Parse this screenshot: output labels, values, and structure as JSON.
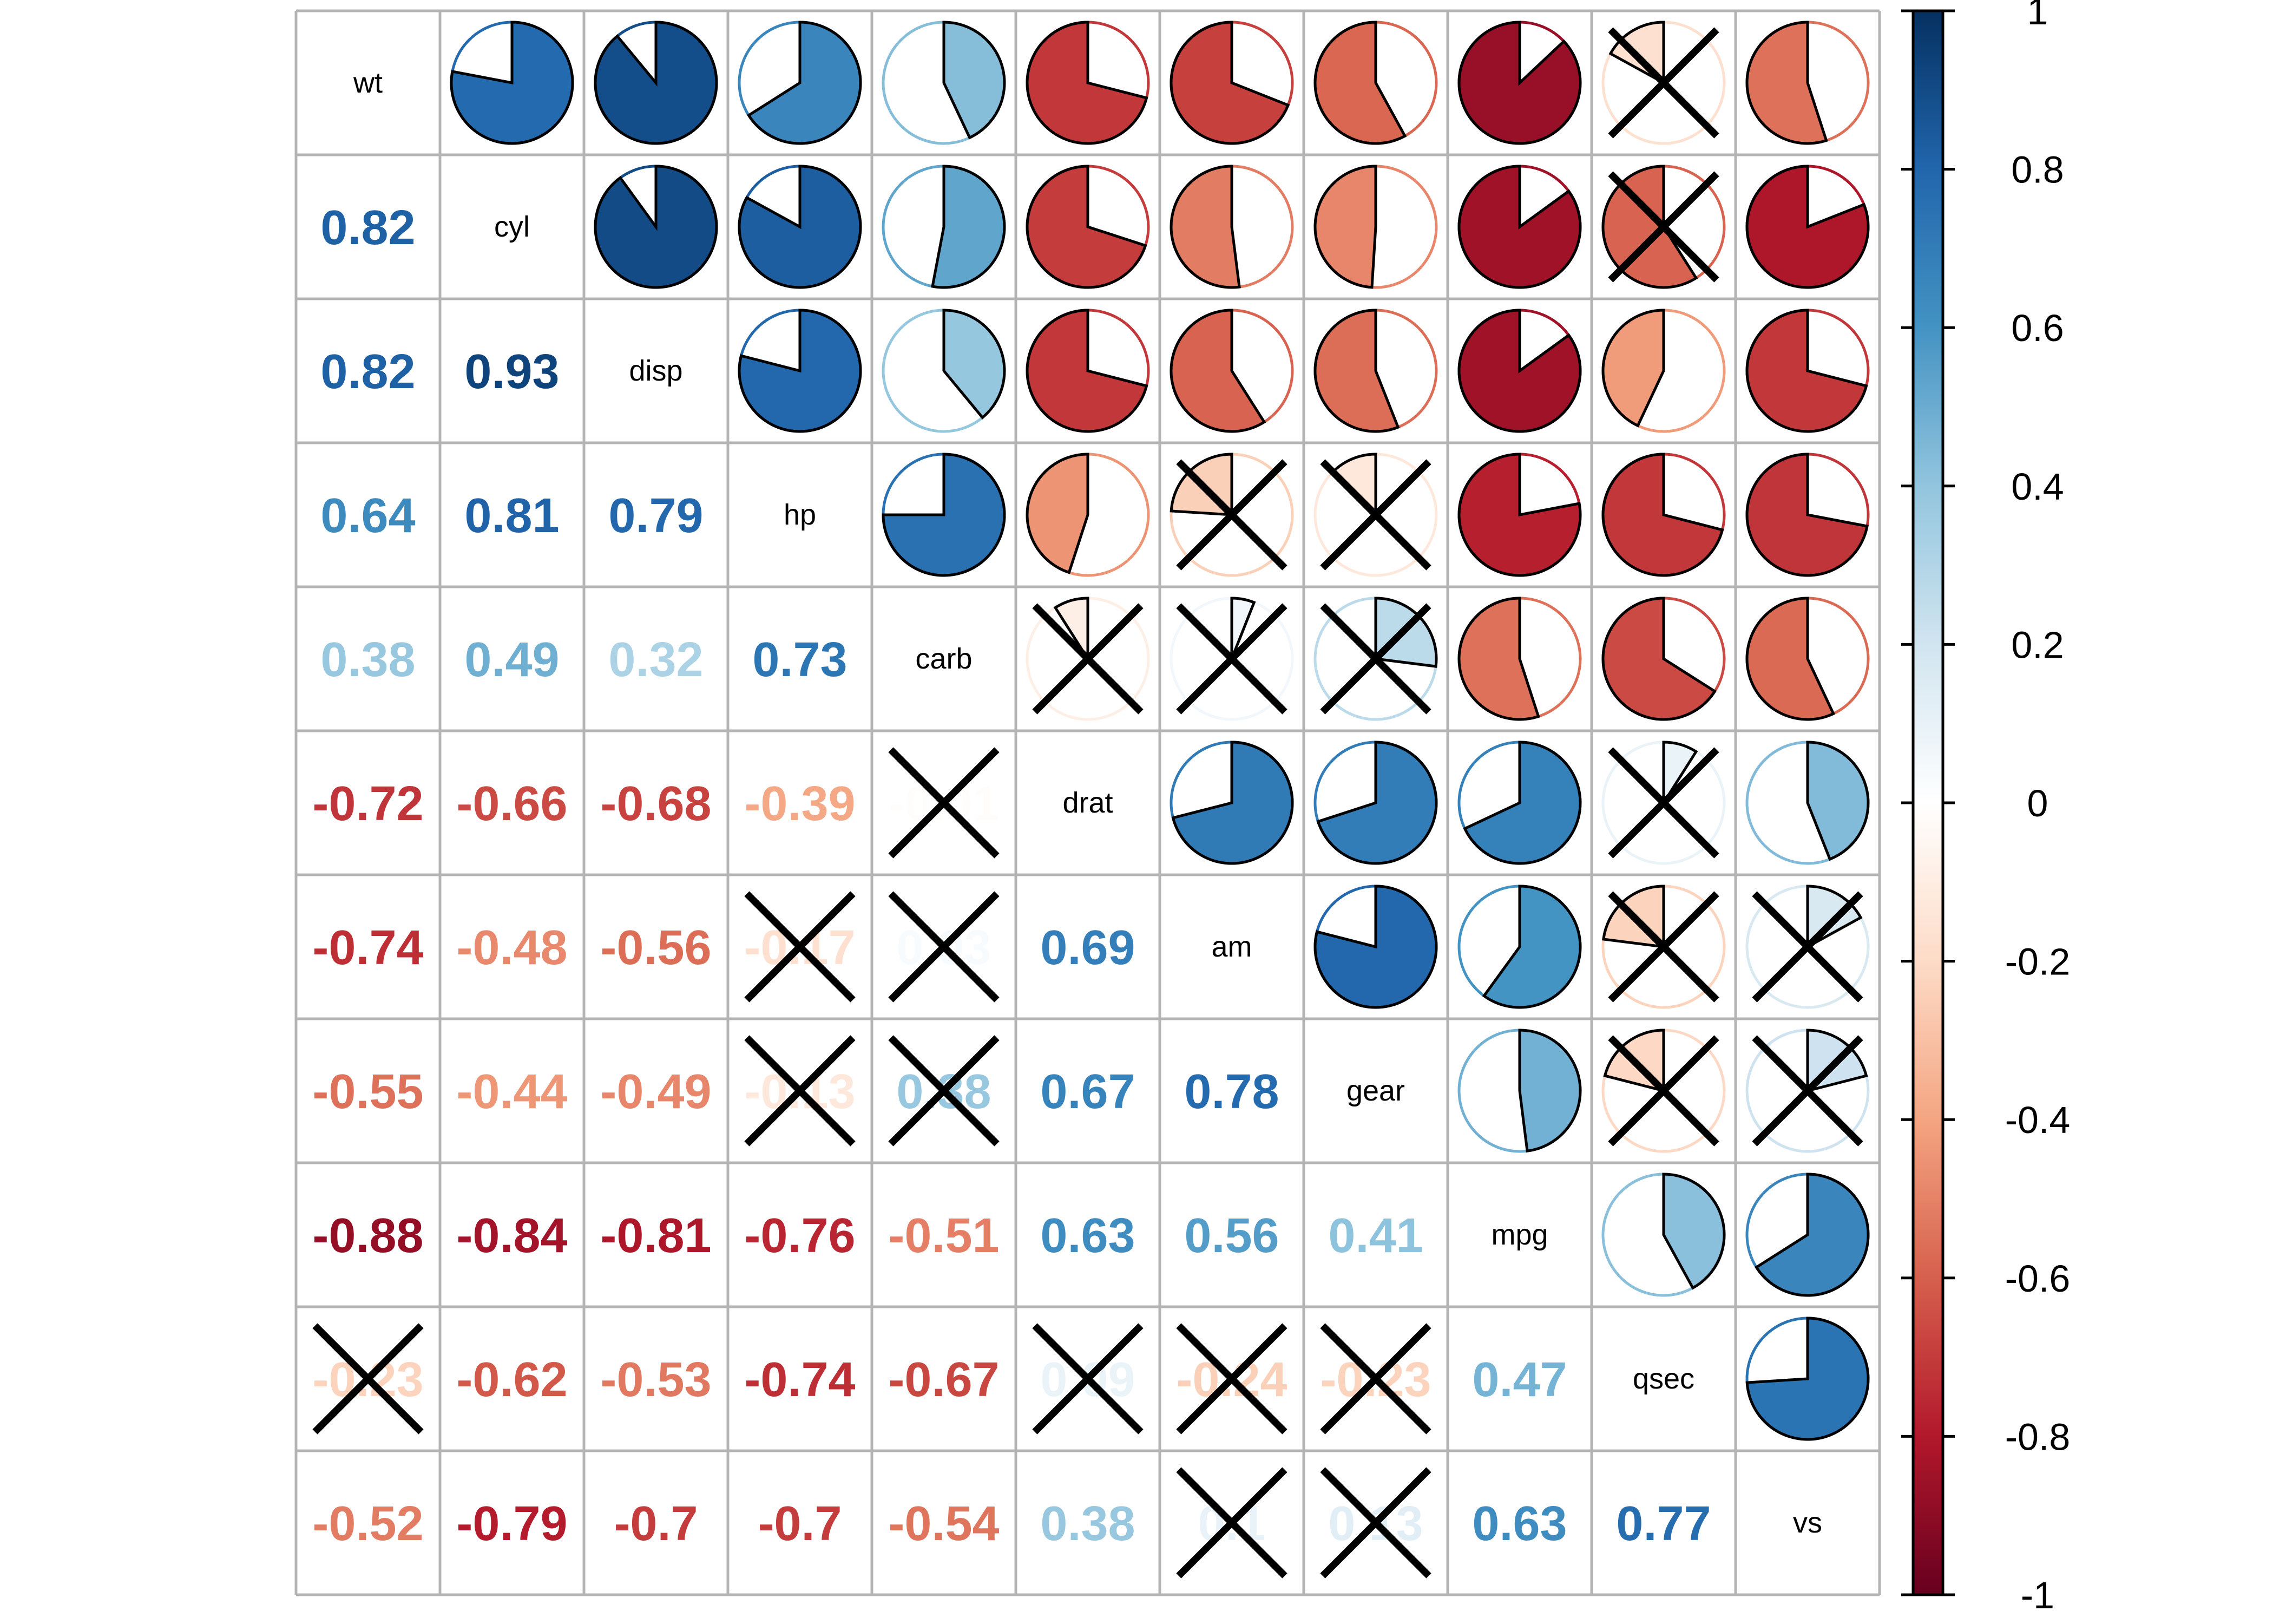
{
  "chart_data": {
    "type": "heatmap",
    "layout": "correlation matrix; variable names on diagonal, pie glyphs in upper triangle, numeric coefficients in lower triangle; crosses mark non-significant cells",
    "variables": [
      "wt",
      "cyl",
      "disp",
      "hp",
      "carb",
      "drat",
      "am",
      "gear",
      "mpg",
      "qsec",
      "vs"
    ],
    "matrix": [
      [
        1,
        0.78,
        0.89,
        0.66,
        0.43,
        -0.71,
        -0.69,
        -0.58,
        -0.87,
        -0.17,
        -0.55
      ],
      [
        0.82,
        1,
        0.9,
        0.83,
        0.53,
        -0.7,
        -0.52,
        -0.49,
        -0.85,
        -0.59,
        -0.81
      ],
      [
        0.82,
        0.93,
        1,
        0.79,
        0.39,
        -0.71,
        -0.59,
        -0.56,
        -0.85,
        -0.43,
        -0.71
      ],
      [
        0.64,
        0.81,
        0.79,
        1,
        0.75,
        -0.45,
        -0.24,
        -0.13,
        -0.78,
        -0.71,
        -0.72
      ],
      [
        0.38,
        0.49,
        0.32,
        0.73,
        1,
        -0.09,
        0.06,
        0.27,
        -0.55,
        -0.66,
        -0.57
      ],
      [
        -0.72,
        -0.66,
        -0.68,
        -0.39,
        -0.01,
        1,
        0.71,
        0.7,
        0.68,
        0.09,
        0.44
      ],
      [
        -0.74,
        -0.48,
        -0.56,
        -0.17,
        0.03,
        0.69,
        1,
        0.79,
        0.6,
        -0.23,
        0.17
      ],
      [
        -0.55,
        -0.44,
        -0.49,
        -0.13,
        0.38,
        0.67,
        0.78,
        1,
        0.48,
        -0.21,
        0.21
      ],
      [
        -0.88,
        -0.84,
        -0.81,
        -0.76,
        -0.51,
        0.63,
        0.56,
        0.41,
        1,
        0.42,
        0.66
      ],
      [
        -0.23,
        -0.62,
        -0.53,
        -0.74,
        -0.67,
        0.09,
        -0.24,
        -0.23,
        0.47,
        1,
        0.74
      ],
      [
        -0.52,
        -0.79,
        -0.7,
        -0.7,
        -0.54,
        0.38,
        0.1,
        0.13,
        0.63,
        0.77,
        1
      ]
    ],
    "insignificant": [
      [
        0,
        9
      ],
      [
        1,
        9
      ],
      [
        3,
        6
      ],
      [
        3,
        7
      ],
      [
        4,
        5
      ],
      [
        4,
        6
      ],
      [
        4,
        7
      ],
      [
        5,
        9
      ],
      [
        6,
        9
      ],
      [
        6,
        10
      ],
      [
        7,
        9
      ],
      [
        7,
        10
      ],
      [
        5,
        4
      ],
      [
        6,
        3
      ],
      [
        6,
        4
      ],
      [
        7,
        3
      ],
      [
        7,
        4
      ],
      [
        9,
        0
      ],
      [
        9,
        5
      ],
      [
        9,
        6
      ],
      [
        9,
        7
      ],
      [
        10,
        6
      ],
      [
        10,
        7
      ]
    ],
    "color_scale": {
      "domain": [
        -1,
        1
      ],
      "stops": [
        "#67001F",
        "#B2182B",
        "#D6604D",
        "#F4A582",
        "#FDDBC7",
        "#FFFFFF",
        "#D1E5F0",
        "#92C5DE",
        "#4393C3",
        "#2166AC",
        "#053061"
      ]
    },
    "legend": {
      "placement": "right",
      "ticks": [
        1,
        0.8,
        0.6,
        0.4,
        0.2,
        0,
        -0.2,
        -0.4,
        -0.6,
        -0.8,
        -1
      ],
      "tick_labels": [
        "1",
        "0.8",
        "0.6",
        "0.4",
        "0.2",
        "0",
        "-0.2",
        "-0.4",
        "-0.6",
        "-0.8",
        "-1"
      ]
    },
    "grid": true
  }
}
